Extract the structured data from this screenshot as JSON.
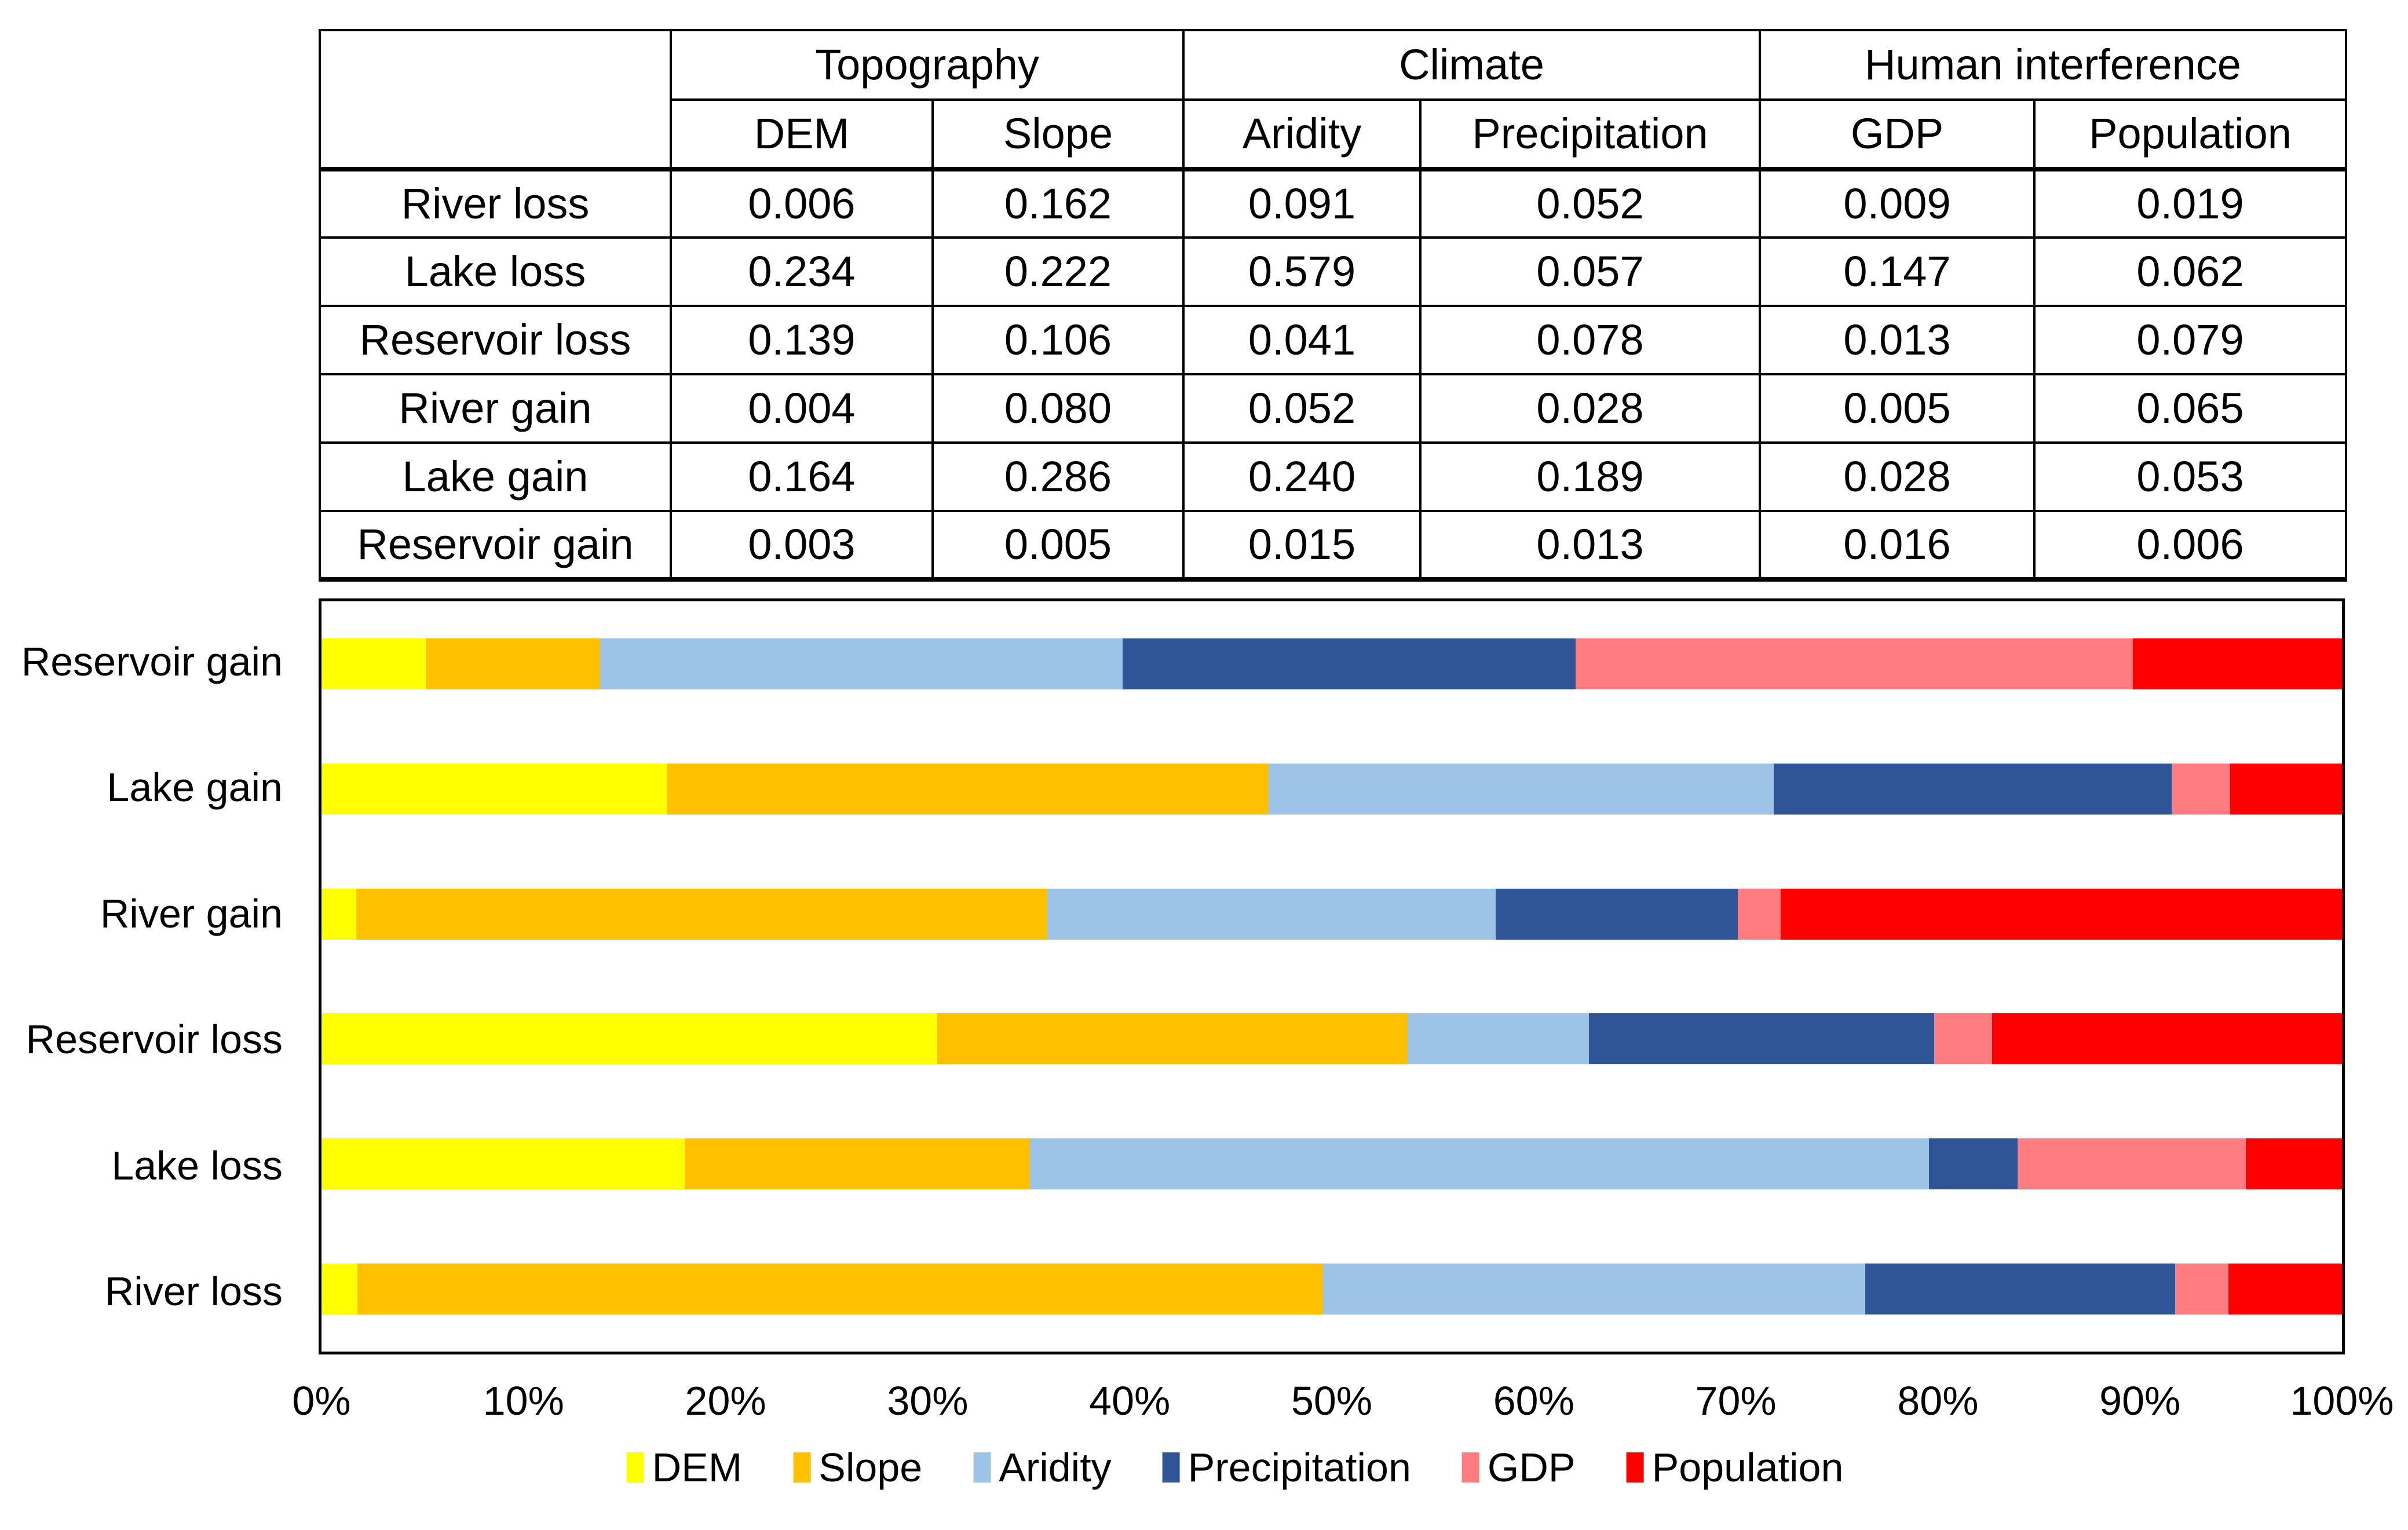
{
  "table": {
    "corner_label": "",
    "groups": [
      {
        "label": "Topography",
        "columns": [
          "DEM",
          "Slope"
        ]
      },
      {
        "label": "Climate",
        "columns": [
          "Aridity",
          "Precipitation"
        ]
      },
      {
        "label": "Human interference",
        "columns": [
          "GDP",
          "Population"
        ]
      }
    ],
    "rows": [
      {
        "label": "River loss",
        "values": [
          "0.006",
          "0.162",
          "0.091",
          "0.052",
          "0.009",
          "0.019"
        ]
      },
      {
        "label": "Lake loss",
        "values": [
          "0.234",
          "0.222",
          "0.579",
          "0.057",
          "0.147",
          "0.062"
        ]
      },
      {
        "label": "Reservoir loss",
        "values": [
          "0.139",
          "0.106",
          "0.041",
          "0.078",
          "0.013",
          "0.079"
        ]
      },
      {
        "label": "River gain",
        "values": [
          "0.004",
          "0.080",
          "0.052",
          "0.028",
          "0.005",
          "0.065"
        ]
      },
      {
        "label": "Lake gain",
        "values": [
          "0.164",
          "0.286",
          "0.240",
          "0.189",
          "0.028",
          "0.053"
        ]
      },
      {
        "label": "Reservoir gain",
        "values": [
          "0.003",
          "0.005",
          "0.015",
          "0.013",
          "0.016",
          "0.006"
        ]
      }
    ]
  },
  "chart_data": {
    "type": "bar",
    "subtype": "stacked-100percent-horizontal",
    "categories": [
      "Reservoir gain",
      "Lake gain",
      "River gain",
      "Reservoir loss",
      "Lake loss",
      "River loss"
    ],
    "series": [
      {
        "name": "DEM",
        "color": "#FFFF00",
        "values": [
          0.003,
          0.164,
          0.004,
          0.139,
          0.234,
          0.006
        ]
      },
      {
        "name": "Slope",
        "color": "#FFC000",
        "values": [
          0.005,
          0.286,
          0.08,
          0.106,
          0.222,
          0.162
        ]
      },
      {
        "name": "Aridity",
        "color": "#9DC3E6",
        "values": [
          0.015,
          0.24,
          0.052,
          0.041,
          0.579,
          0.091
        ]
      },
      {
        "name": "Precipitation",
        "color": "#2F5597",
        "values": [
          0.013,
          0.189,
          0.028,
          0.078,
          0.057,
          0.052
        ]
      },
      {
        "name": "GDP",
        "color": "#FF7C80",
        "values": [
          0.016,
          0.028,
          0.005,
          0.013,
          0.147,
          0.009
        ]
      },
      {
        "name": "Population",
        "color": "#FF0000",
        "values": [
          0.006,
          0.053,
          0.065,
          0.079,
          0.062,
          0.019
        ]
      }
    ],
    "x_ticks": [
      "0%",
      "10%",
      "20%",
      "30%",
      "40%",
      "50%",
      "60%",
      "70%",
      "80%",
      "90%",
      "100%"
    ],
    "xlim": [
      0,
      100
    ],
    "normalized_rows_sum_to_100pct": true,
    "grid": false,
    "legend_position": "bottom",
    "axis_color": "#000000",
    "background_color": "#FFFFFF"
  }
}
